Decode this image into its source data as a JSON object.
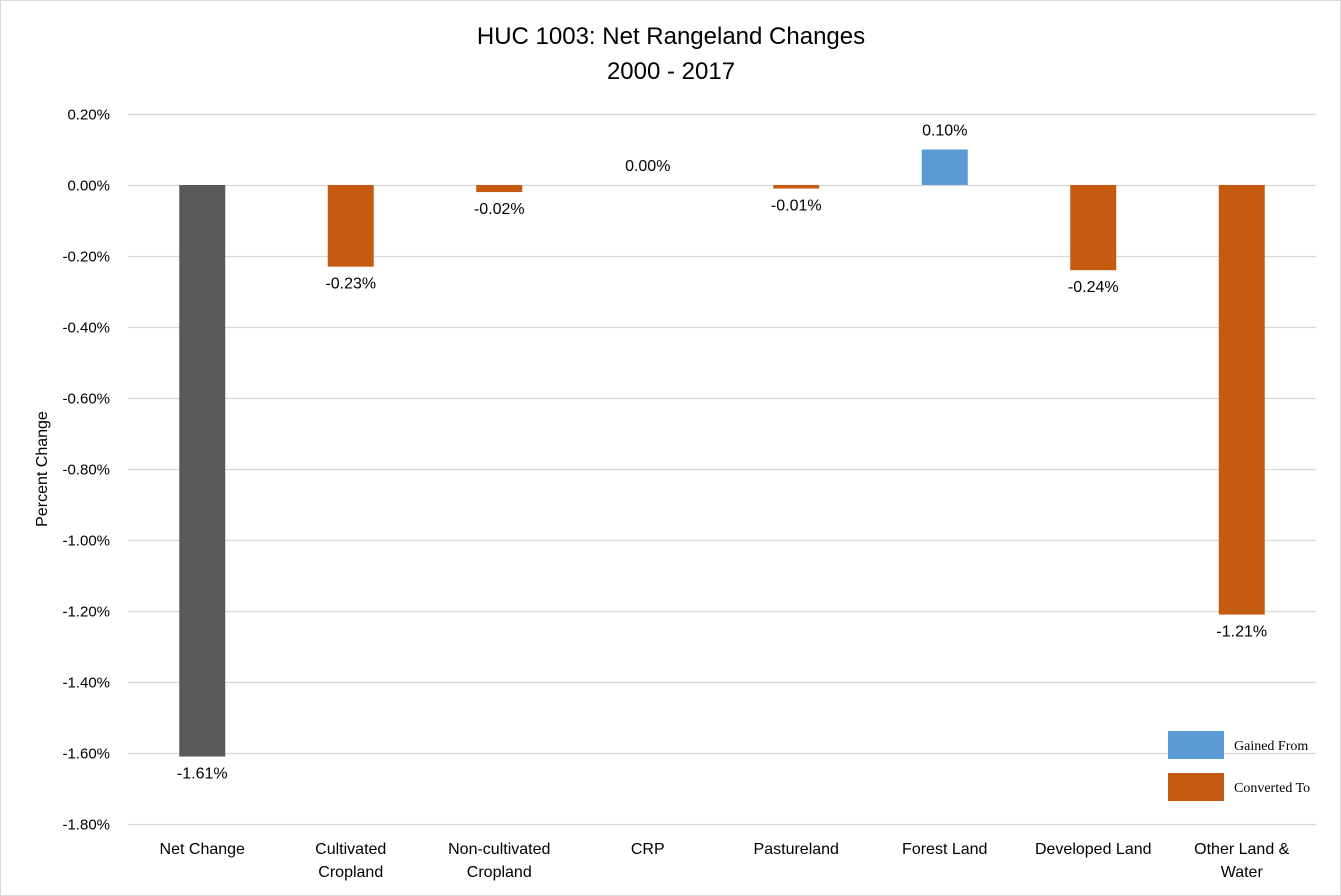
{
  "chart_data": {
    "type": "bar",
    "title_lines": [
      "HUC 1003: Net Rangeland Changes",
      "2000 - 2017"
    ],
    "xlabel": "",
    "ylabel": "Percent Change",
    "categories": [
      [
        "Net Change"
      ],
      [
        "Cultivated",
        "Cropland"
      ],
      [
        "Non-cultivated",
        "Cropland"
      ],
      [
        "CRP"
      ],
      [
        "Pastureland"
      ],
      [
        "Forest Land"
      ],
      [
        "Developed Land"
      ],
      [
        "Other Land &",
        "Water"
      ]
    ],
    "values": [
      -1.61,
      -0.23,
      -0.02,
      0.0,
      -0.01,
      0.1,
      -0.24,
      -1.21
    ],
    "data_labels": [
      "-1.61%",
      "-0.23%",
      "-0.02%",
      "0.00%",
      "-0.01%",
      "0.10%",
      "-0.24%",
      "-1.21%"
    ],
    "bar_groups": [
      "net",
      "converted",
      "converted",
      "converted",
      "converted",
      "gained",
      "converted",
      "converted"
    ],
    "ylim": [
      -1.8,
      0.2
    ],
    "yticks": [
      0.2,
      0.0,
      -0.2,
      -0.4,
      -0.6,
      -0.8,
      -1.0,
      -1.2,
      -1.4,
      -1.6,
      -1.8
    ],
    "ytick_labels": [
      "0.20%",
      "0.00%",
      "-0.20%",
      "-0.40%",
      "-0.60%",
      "-0.80%",
      "-1.00%",
      "-1.20%",
      "-1.40%",
      "-1.60%",
      "-1.80%"
    ],
    "grid": true,
    "legend_position": "bottom-right",
    "legend": [
      {
        "label": "Gained From",
        "group": "gained"
      },
      {
        "label": "Converted To",
        "group": "converted"
      }
    ],
    "colors": {
      "net": "#595959",
      "gained": "#5B9BD5",
      "converted": "#C55A11",
      "grid": "#d9d9d9",
      "border": "#d9d9d9"
    }
  }
}
